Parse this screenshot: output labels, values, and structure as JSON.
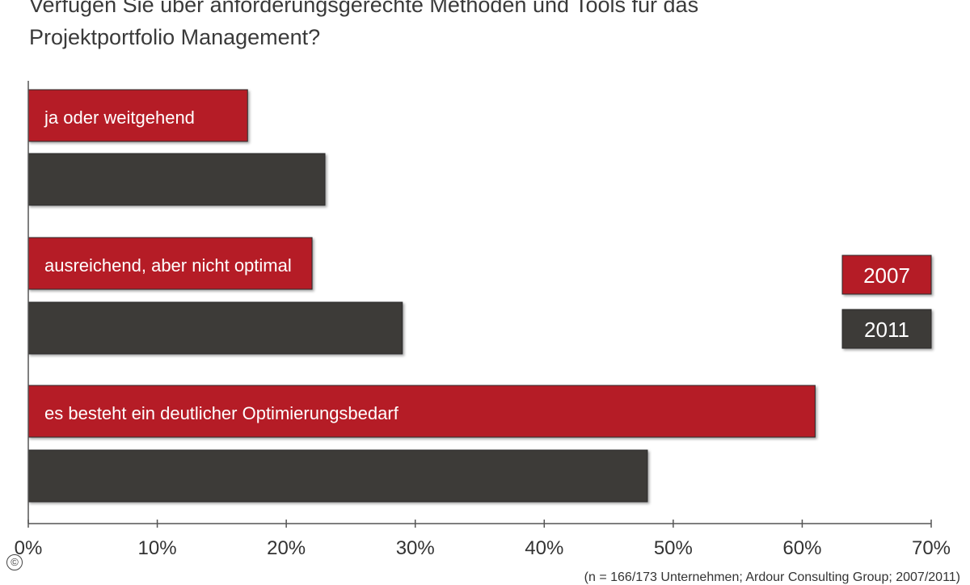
{
  "title": {
    "line1": "Verfügen Sie über anforderungsgerechte Methoden und Tools für das",
    "line2": "Projektportfolio Management?"
  },
  "source": "(n = 166/173 Unternehmen; Ardour Consulting Group; 2007/2011)",
  "copyright_symbol": "©",
  "colors": {
    "2007": "#b51a26",
    "2011": "#3e3a39",
    "axis": "#555555",
    "text": "#333333"
  },
  "chart_data": {
    "type": "bar",
    "orientation": "horizontal",
    "title": "Verfügen Sie über anforderungsgerechte Methoden und Tools für das Projektportfolio Management?",
    "categories": [
      "ja oder weitgehend",
      "ausreichend, aber nicht optimal",
      "es besteht ein deutlicher Optimierungsbedarf"
    ],
    "series": [
      {
        "name": "2007",
        "color": "#b51a26",
        "values": [
          17,
          22,
          61
        ]
      },
      {
        "name": "2011",
        "color": "#3e3a39",
        "values": [
          23,
          29,
          48
        ]
      }
    ],
    "xlim": [
      0,
      70
    ],
    "xticks": [
      "0%",
      "10%",
      "20%",
      "30%",
      "40%",
      "50%",
      "60%",
      "70%"
    ],
    "xlabel": "",
    "ylabel": "",
    "grid": false,
    "legend": "right"
  }
}
